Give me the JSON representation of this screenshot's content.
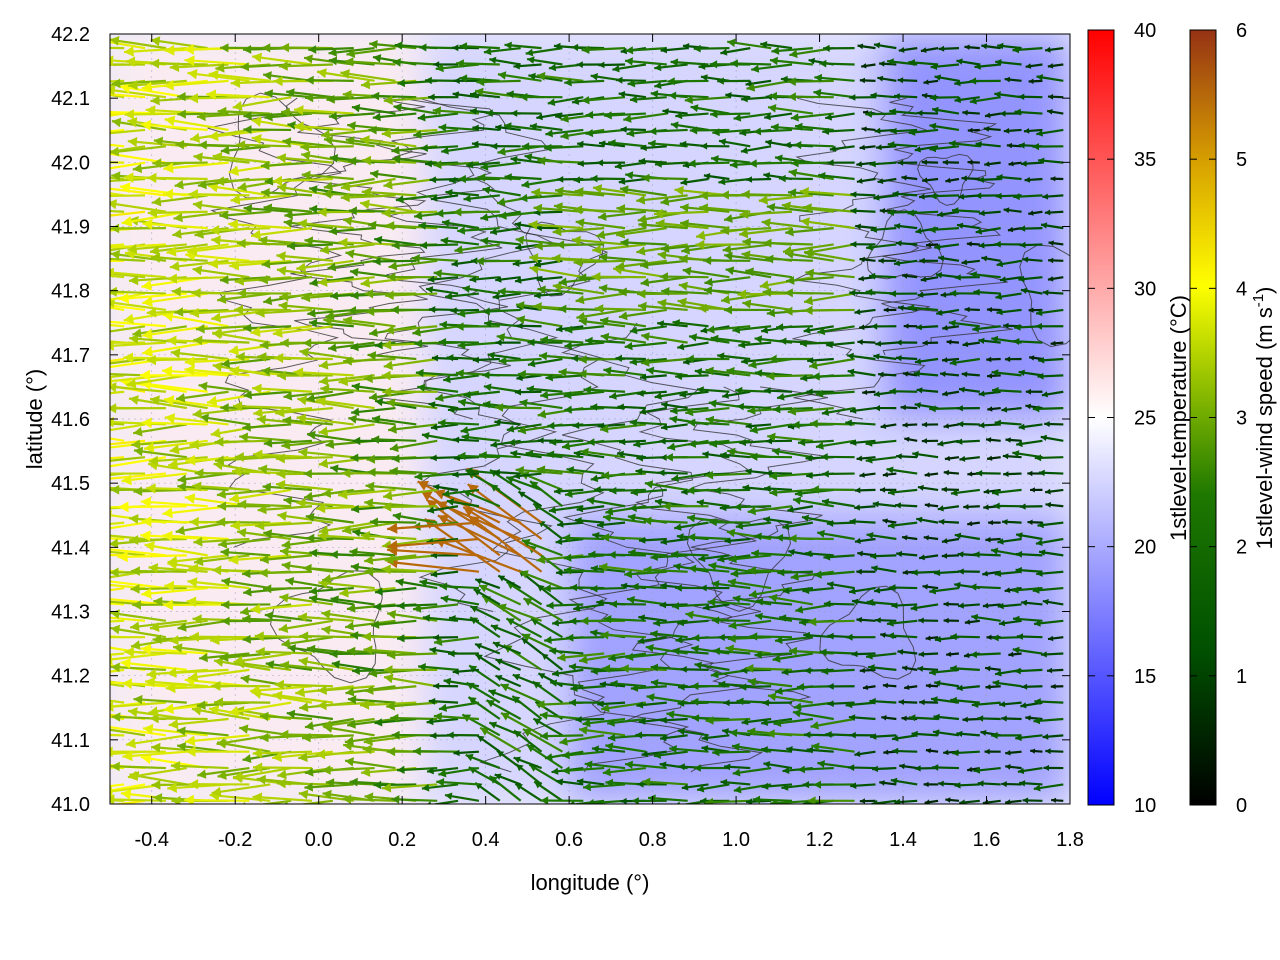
{
  "chart_data": {
    "type": "heatmap",
    "overlay": "wind-vector-field-with-contours",
    "title": "",
    "xlabel": "longitude (°)",
    "ylabel": "latitude (°)",
    "xlim": [
      -0.5,
      1.8
    ],
    "ylim": [
      41.0,
      42.2
    ],
    "xticks": [
      "-0.4",
      "-0.2",
      "0.0",
      "0.2",
      "0.4",
      "0.6",
      "0.8",
      "1.0",
      "1.2",
      "1.4",
      "1.6",
      "1.8"
    ],
    "yticks": [
      "41.0",
      "41.1",
      "41.2",
      "41.3",
      "41.4",
      "41.5",
      "41.6",
      "41.7",
      "41.8",
      "41.9",
      "42.0",
      "42.1",
      "42.2"
    ],
    "grid": true,
    "colorbars": [
      {
        "label": "1stlevel-temperature (°C)",
        "range": [
          10,
          40
        ],
        "ticks": [
          "10",
          "15",
          "20",
          "25",
          "30",
          "35",
          "40"
        ],
        "colors": [
          "#0000ff",
          "#ffffff",
          "#ff0000"
        ]
      },
      {
        "label_main": "1stlevel-wind speed (m s",
        "label_sup": "-1",
        "label_end": ")",
        "range": [
          0,
          6
        ],
        "ticks": [
          "0",
          "1",
          "2",
          "3",
          "4",
          "5",
          "6"
        ],
        "colors": [
          "#000000",
          "#005a00",
          "#3c9600",
          "#9ec800",
          "#ffff00",
          "#d7a000",
          "#963214"
        ]
      }
    ],
    "temperature_regions": [
      {
        "name": "western-warm-area",
        "lon": [
          -0.5,
          0.25
        ],
        "lat": [
          41.0,
          42.2
        ],
        "temperature": 26
      },
      {
        "name": "coastal-cool-area",
        "lon": [
          0.6,
          1.8
        ],
        "lat": [
          41.0,
          41.45
        ],
        "temperature": 19
      },
      {
        "name": "northeast-cool-area",
        "lon": [
          1.35,
          1.8
        ],
        "lat": [
          41.6,
          42.2
        ],
        "temperature": 18
      }
    ],
    "wind": {
      "direction": "from east (westward flow)",
      "speed_range_m_s": [
        0,
        6
      ],
      "strong_zone": {
        "lon": [
          -0.5,
          0.3
        ],
        "speed_m_s": 3.8
      },
      "peak_zone": {
        "lon": [
          0.35,
          0.55
        ],
        "lat": [
          41.35,
          41.45
        ],
        "speed_m_s": 5.5
      },
      "weak_zone": {
        "lon": [
          1.4,
          1.8
        ],
        "speed_m_s": 0.5
      }
    }
  }
}
